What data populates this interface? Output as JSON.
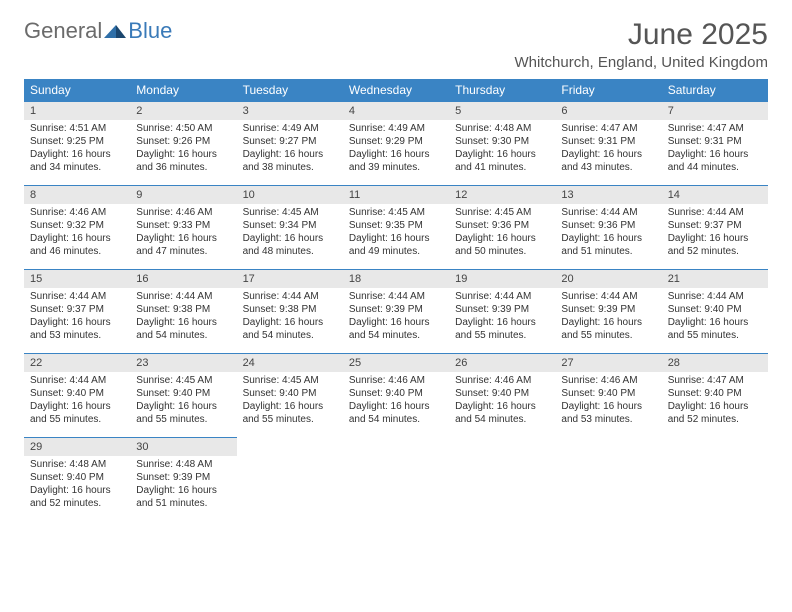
{
  "logo": {
    "part1": "General",
    "part2": "Blue"
  },
  "title": "June 2025",
  "location": "Whitchurch, England, United Kingdom",
  "colors": {
    "header_bg": "#3a84c4",
    "header_text": "#ffffff",
    "daynum_bg": "#e8e8e8",
    "daynum_border": "#3a84c4",
    "logo_gray": "#6b6b6b",
    "logo_blue": "#3a7ab8"
  },
  "weekdays": [
    "Sunday",
    "Monday",
    "Tuesday",
    "Wednesday",
    "Thursday",
    "Friday",
    "Saturday"
  ],
  "days": [
    {
      "n": 1,
      "sr": "4:51 AM",
      "ss": "9:25 PM",
      "dl": "16 hours and 34 minutes."
    },
    {
      "n": 2,
      "sr": "4:50 AM",
      "ss": "9:26 PM",
      "dl": "16 hours and 36 minutes."
    },
    {
      "n": 3,
      "sr": "4:49 AM",
      "ss": "9:27 PM",
      "dl": "16 hours and 38 minutes."
    },
    {
      "n": 4,
      "sr": "4:49 AM",
      "ss": "9:29 PM",
      "dl": "16 hours and 39 minutes."
    },
    {
      "n": 5,
      "sr": "4:48 AM",
      "ss": "9:30 PM",
      "dl": "16 hours and 41 minutes."
    },
    {
      "n": 6,
      "sr": "4:47 AM",
      "ss": "9:31 PM",
      "dl": "16 hours and 43 minutes."
    },
    {
      "n": 7,
      "sr": "4:47 AM",
      "ss": "9:31 PM",
      "dl": "16 hours and 44 minutes."
    },
    {
      "n": 8,
      "sr": "4:46 AM",
      "ss": "9:32 PM",
      "dl": "16 hours and 46 minutes."
    },
    {
      "n": 9,
      "sr": "4:46 AM",
      "ss": "9:33 PM",
      "dl": "16 hours and 47 minutes."
    },
    {
      "n": 10,
      "sr": "4:45 AM",
      "ss": "9:34 PM",
      "dl": "16 hours and 48 minutes."
    },
    {
      "n": 11,
      "sr": "4:45 AM",
      "ss": "9:35 PM",
      "dl": "16 hours and 49 minutes."
    },
    {
      "n": 12,
      "sr": "4:45 AM",
      "ss": "9:36 PM",
      "dl": "16 hours and 50 minutes."
    },
    {
      "n": 13,
      "sr": "4:44 AM",
      "ss": "9:36 PM",
      "dl": "16 hours and 51 minutes."
    },
    {
      "n": 14,
      "sr": "4:44 AM",
      "ss": "9:37 PM",
      "dl": "16 hours and 52 minutes."
    },
    {
      "n": 15,
      "sr": "4:44 AM",
      "ss": "9:37 PM",
      "dl": "16 hours and 53 minutes."
    },
    {
      "n": 16,
      "sr": "4:44 AM",
      "ss": "9:38 PM",
      "dl": "16 hours and 54 minutes."
    },
    {
      "n": 17,
      "sr": "4:44 AM",
      "ss": "9:38 PM",
      "dl": "16 hours and 54 minutes."
    },
    {
      "n": 18,
      "sr": "4:44 AM",
      "ss": "9:39 PM",
      "dl": "16 hours and 54 minutes."
    },
    {
      "n": 19,
      "sr": "4:44 AM",
      "ss": "9:39 PM",
      "dl": "16 hours and 55 minutes."
    },
    {
      "n": 20,
      "sr": "4:44 AM",
      "ss": "9:39 PM",
      "dl": "16 hours and 55 minutes."
    },
    {
      "n": 21,
      "sr": "4:44 AM",
      "ss": "9:40 PM",
      "dl": "16 hours and 55 minutes."
    },
    {
      "n": 22,
      "sr": "4:44 AM",
      "ss": "9:40 PM",
      "dl": "16 hours and 55 minutes."
    },
    {
      "n": 23,
      "sr": "4:45 AM",
      "ss": "9:40 PM",
      "dl": "16 hours and 55 minutes."
    },
    {
      "n": 24,
      "sr": "4:45 AM",
      "ss": "9:40 PM",
      "dl": "16 hours and 55 minutes."
    },
    {
      "n": 25,
      "sr": "4:46 AM",
      "ss": "9:40 PM",
      "dl": "16 hours and 54 minutes."
    },
    {
      "n": 26,
      "sr": "4:46 AM",
      "ss": "9:40 PM",
      "dl": "16 hours and 54 minutes."
    },
    {
      "n": 27,
      "sr": "4:46 AM",
      "ss": "9:40 PM",
      "dl": "16 hours and 53 minutes."
    },
    {
      "n": 28,
      "sr": "4:47 AM",
      "ss": "9:40 PM",
      "dl": "16 hours and 52 minutes."
    },
    {
      "n": 29,
      "sr": "4:48 AM",
      "ss": "9:40 PM",
      "dl": "16 hours and 52 minutes."
    },
    {
      "n": 30,
      "sr": "4:48 AM",
      "ss": "9:39 PM",
      "dl": "16 hours and 51 minutes."
    }
  ],
  "labels": {
    "sunrise": "Sunrise:",
    "sunset": "Sunset:",
    "daylight": "Daylight:"
  },
  "layout": {
    "first_day_column": 0,
    "total_cells": 35
  }
}
